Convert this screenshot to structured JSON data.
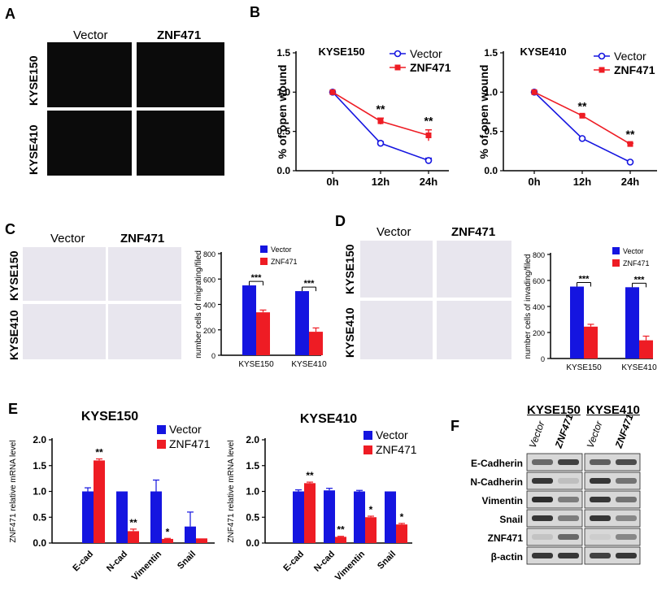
{
  "panels": {
    "A": {
      "letter": "A",
      "col_labels": [
        "Vector",
        "ZNF471"
      ],
      "row_labels": [
        "KYSE150",
        "KYSE410"
      ]
    },
    "B": {
      "letter": "B"
    },
    "C": {
      "letter": "C",
      "col_labels": [
        "Vector",
        "ZNF471"
      ],
      "row_labels": [
        "KYSE150",
        "KYSE410"
      ]
    },
    "D": {
      "letter": "D",
      "col_labels": [
        "Vector",
        "ZNF471"
      ],
      "row_labels": [
        "KYSE150",
        "KYSE410"
      ]
    },
    "E": {
      "letter": "E"
    },
    "F": {
      "letter": "F",
      "cell_lines": [
        "KYSE150",
        "KYSE410"
      ],
      "lane_labels": [
        "Vector",
        "ZNF471",
        "Vector",
        "ZNF471"
      ],
      "proteins": [
        "E-Cadherin",
        "N-Cadherin",
        "Vimentin",
        "Snail",
        "ZNF471",
        "β-actin"
      ]
    }
  },
  "colors": {
    "vector": "#1515e0",
    "znf471": "#ee1c24"
  },
  "chart_data": [
    {
      "id": "B1",
      "type": "line",
      "title": "KYSE150",
      "ylabel": "% of open wound",
      "categories": [
        "0h",
        "12h",
        "24h"
      ],
      "ylim": [
        0,
        1.5
      ],
      "yticks": [
        "0.0",
        "0.5",
        "1.0",
        "1.5"
      ],
      "series": [
        {
          "name": "Vector",
          "values": [
            1.0,
            0.35,
            0.13
          ],
          "err": [
            0,
            0.02,
            0.03
          ]
        },
        {
          "name": "ZNF471",
          "values": [
            1.0,
            0.63,
            0.45
          ],
          "err": [
            0,
            0.04,
            0.07
          ]
        }
      ],
      "annotations": [
        "**",
        "**"
      ],
      "legend": "top-right"
    },
    {
      "id": "B2",
      "type": "line",
      "title": "KYSE410",
      "ylabel": "% of open wound",
      "categories": [
        "0h",
        "12h",
        "24h"
      ],
      "ylim": [
        0,
        1.5
      ],
      "yticks": [
        "0.0",
        "0.5",
        "1.0",
        "1.5"
      ],
      "series": [
        {
          "name": "Vector",
          "values": [
            1.0,
            0.41,
            0.11
          ],
          "err": [
            0,
            0.01,
            0.01
          ]
        },
        {
          "name": "ZNF471",
          "values": [
            1.0,
            0.7,
            0.34
          ],
          "err": [
            0,
            0.01,
            0.01
          ]
        }
      ],
      "annotations": [
        "**",
        "**"
      ],
      "legend": "top-right"
    },
    {
      "id": "C",
      "type": "bar",
      "ylabel": "number cells of migrating/filed",
      "categories": [
        "KYSE150",
        "KYSE410"
      ],
      "ylim": [
        0,
        800
      ],
      "yticks": [
        "0",
        "200",
        "400",
        "600",
        "800"
      ],
      "series": [
        {
          "name": "Vector",
          "values": [
            550,
            505
          ],
          "err": [
            0,
            0
          ]
        },
        {
          "name": "ZNF471",
          "values": [
            338,
            185
          ],
          "err": [
            18,
            30
          ]
        }
      ],
      "annotations": [
        "***",
        "***"
      ],
      "legend": "top-right"
    },
    {
      "id": "D",
      "type": "bar",
      "ylabel": "number cells of invading/filed",
      "categories": [
        "KYSE150",
        "KYSE410"
      ],
      "ylim": [
        0,
        800
      ],
      "yticks": [
        "0",
        "200",
        "400",
        "600",
        "800"
      ],
      "series": [
        {
          "name": "Vector",
          "values": [
            553,
            548
          ],
          "err": [
            0,
            0
          ]
        },
        {
          "name": "ZNF471",
          "values": [
            245,
            140
          ],
          "err": [
            18,
            32
          ]
        }
      ],
      "annotations": [
        "***",
        "***"
      ],
      "legend": "top-right"
    },
    {
      "id": "E1",
      "type": "bar",
      "title": "KYSE150",
      "ylabel": "ZNF471 relative mRNA level",
      "categories": [
        "E-cad",
        "N-cad",
        "Vimentin",
        "Snail"
      ],
      "ylim": [
        0,
        2.0
      ],
      "yticks": [
        "0.0",
        "0.5",
        "1.0",
        "1.5",
        "2.0"
      ],
      "series": [
        {
          "name": "Vector",
          "values": [
            1.0,
            1.0,
            1.0,
            0.32
          ],
          "err": [
            0.07,
            0,
            0.22,
            0.28
          ]
        },
        {
          "name": "ZNF471",
          "values": [
            1.6,
            0.23,
            0.08,
            0.09
          ],
          "err": [
            0.03,
            0.04,
            0.01,
            0
          ]
        }
      ],
      "annotations": [
        "**",
        "**",
        "*",
        ""
      ],
      "legend": "top-right"
    },
    {
      "id": "E2",
      "type": "bar",
      "title": "KYSE410",
      "ylabel": "ZNF471 relative mRNA level",
      "categories": [
        "E-cad",
        "N-cad",
        "Vimentin",
        "Snail"
      ],
      "ylim": [
        0,
        2.0
      ],
      "yticks": [
        "0.0",
        "0.5",
        "1.0",
        "1.5",
        "2.0"
      ],
      "series": [
        {
          "name": "Vector",
          "values": [
            1.0,
            1.02,
            1.0,
            1.0
          ],
          "err": [
            0.03,
            0.04,
            0.02,
            0
          ]
        },
        {
          "name": "ZNF471",
          "values": [
            1.16,
            0.12,
            0.5,
            0.36
          ],
          "err": [
            0.02,
            0.01,
            0.02,
            0.02
          ]
        }
      ],
      "annotations": [
        "**",
        "**",
        "*",
        "*"
      ],
      "legend": "top-right"
    }
  ]
}
